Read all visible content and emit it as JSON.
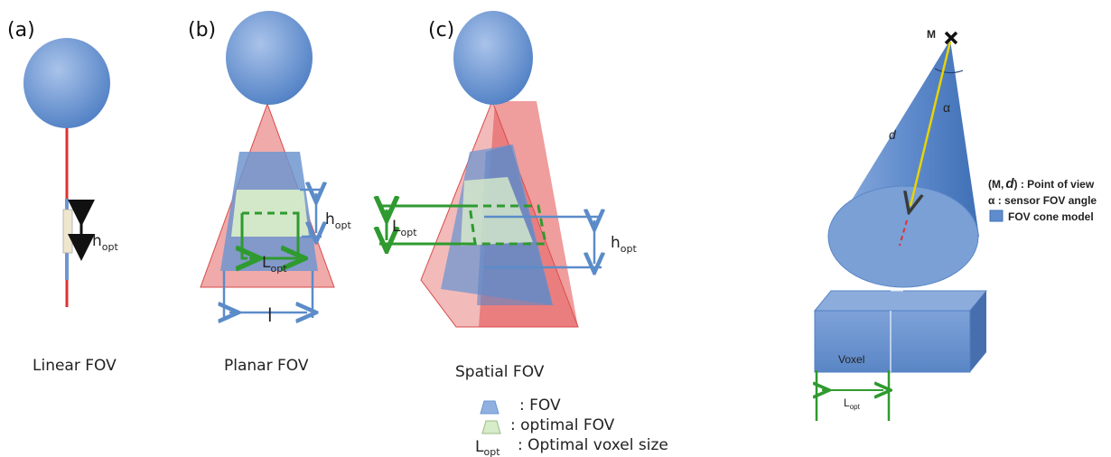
{
  "panels": {
    "a": {
      "label": "(a)",
      "caption": "Linear FOV",
      "h_main": "h",
      "h_sub": "opt"
    },
    "b": {
      "label": "(b)",
      "caption": "Planar FOV",
      "h_main": "h",
      "h_sub": "opt",
      "l_main": "L",
      "l_sub": "opt",
      "width_mark": "l"
    },
    "c": {
      "label": "(c)",
      "caption": "Spatial FOV",
      "h_main": "h",
      "h_sub": "opt",
      "l_main": "L",
      "l_sub": "opt"
    }
  },
  "legend_c": {
    "fov": ": FOV",
    "optimal": ": optimal FOV",
    "lopt_main": "L",
    "lopt_sub": "opt",
    "voxel_size": ": Optimal voxel size"
  },
  "right_diagram": {
    "point_label": "M",
    "alpha": "α",
    "d_vec": "d",
    "voxel_label": "Voxel",
    "lopt_main": "L",
    "lopt_sub": "opt",
    "legend": {
      "point_of_view_prefix": "(M,",
      "point_of_view_vec": "d",
      "point_of_view_suffix": ") : Point of view",
      "fov_angle": "α : sensor FOV angle",
      "cone_model": "FOV cone model"
    }
  },
  "colors": {
    "blue_fill": "#6f96cf",
    "blue_light": "#9bb7e0",
    "red_fill": "#e46565",
    "green": "#2f9a2f",
    "optimal_fill": "#d7ecc9",
    "arrow_blue": "#5b8cc9",
    "yellow": "#e8d400"
  }
}
